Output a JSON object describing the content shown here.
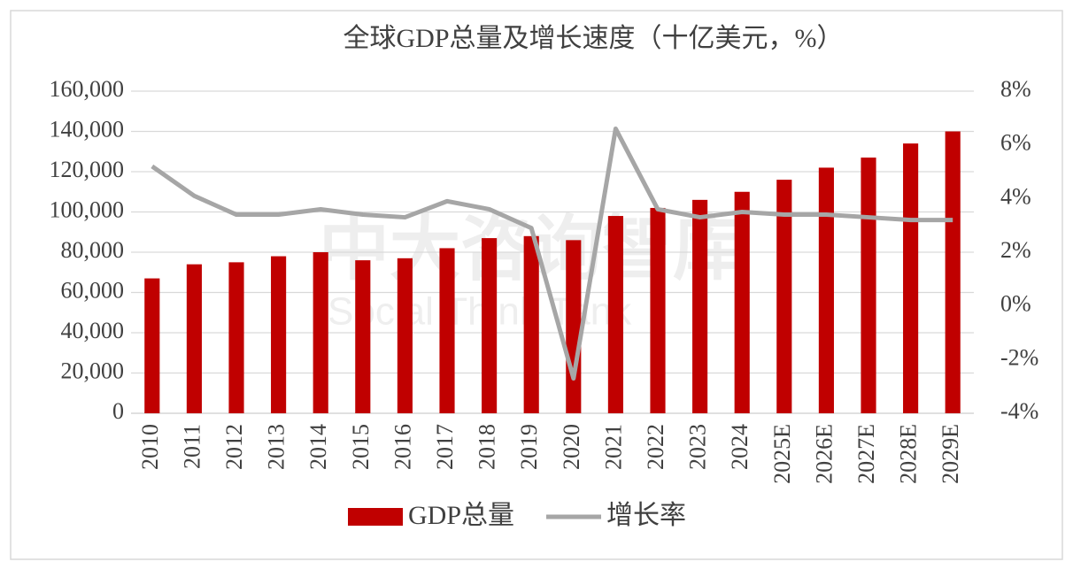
{
  "chart_data": {
    "type": "bar_line",
    "title": "全球GDP总量及增长速度（十亿美元，%）",
    "watermark": [
      "中大咨询智库",
      "Social Think Tank"
    ],
    "categories": [
      "2010",
      "2011",
      "2012",
      "2013",
      "2014",
      "2015",
      "2016",
      "2017",
      "2018",
      "2019",
      "2020",
      "2021",
      "2022",
      "2023",
      "2024",
      "2025E",
      "2026E",
      "2027E",
      "2028E",
      "2029E"
    ],
    "series": [
      {
        "name": "GDP总量",
        "type": "bar",
        "color": "#c00000",
        "values": [
          67000,
          74000,
          75000,
          78000,
          80000,
          76000,
          77000,
          82000,
          87000,
          88000,
          86000,
          98000,
          102000,
          106000,
          110000,
          116000,
          122000,
          127000,
          134000,
          140000
        ]
      },
      {
        "name": "增长率",
        "type": "line",
        "axis": "y2",
        "color": "#a6a6a6",
        "values": [
          5.2,
          4.1,
          3.4,
          3.4,
          3.6,
          3.4,
          3.3,
          3.9,
          3.6,
          2.9,
          -2.7,
          6.6,
          3.6,
          3.3,
          3.5,
          3.4,
          3.4,
          3.3,
          3.2,
          3.2
        ]
      }
    ],
    "ylim": [
      0,
      160000
    ],
    "yticks": [
      0,
      {
        "value": 20000,
        "label": "20,000"
      },
      {
        "value": 40000,
        "label": "40,000"
      },
      {
        "value": 60000,
        "label": "60,000"
      },
      {
        "value": 80000,
        "label": "80,000"
      },
      {
        "value": 100000,
        "label": "100,000"
      },
      {
        "value": 120000,
        "label": "120,000"
      },
      {
        "value": 140000,
        "label": "140,000"
      },
      {
        "value": 160000,
        "label": "160,000"
      }
    ],
    "y2lim": [
      -4,
      8
    ],
    "y2ticks": [
      {
        "value": -4,
        "label": "-4%"
      },
      {
        "value": -2,
        "label": "-2%"
      },
      {
        "value": 0,
        "label": "0%"
      },
      {
        "value": 2,
        "label": "2%"
      },
      {
        "value": 4,
        "label": "4%"
      },
      {
        "value": 6,
        "label": "6%"
      },
      {
        "value": 8,
        "label": "8%"
      }
    ],
    "grid": true,
    "legend": "bottom"
  }
}
